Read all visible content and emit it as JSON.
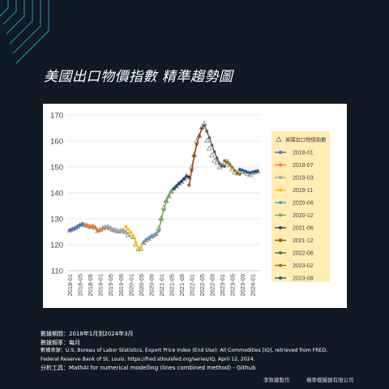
{
  "header": {
    "title": "美國出口物價指數 精準趨勢圖"
  },
  "chart_data": {
    "type": "line",
    "title": "",
    "xlabel": "",
    "ylabel": "",
    "ylim": [
      110,
      170
    ],
    "yticks": [
      110,
      120,
      130,
      140,
      150,
      160,
      170
    ],
    "xticks": [
      "2018-01",
      "2018-05",
      "2018-09",
      "2019-01",
      "2019-05",
      "2019-09",
      "2020-01",
      "2020-05",
      "2020-09",
      "2021-01",
      "2021-05",
      "2021-09",
      "2022-01",
      "2022-05",
      "2022-09",
      "2023-01",
      "2023-05",
      "2023-09",
      "2024-01"
    ],
    "grid": true,
    "legend_position": "right",
    "observed": {
      "name": "美國出口物價指數",
      "color": "#777777",
      "marker": "open-triangle",
      "x": [
        "2018-01",
        "2018-02",
        "2018-03",
        "2018-04",
        "2018-05",
        "2018-06",
        "2018-07",
        "2018-08",
        "2018-09",
        "2018-10",
        "2018-11",
        "2018-12",
        "2019-01",
        "2019-02",
        "2019-03",
        "2019-04",
        "2019-05",
        "2019-06",
        "2019-07",
        "2019-08",
        "2019-09",
        "2019-10",
        "2019-11",
        "2019-12",
        "2020-01",
        "2020-02",
        "2020-03",
        "2020-04",
        "2020-05",
        "2020-06",
        "2020-07",
        "2020-08",
        "2020-09",
        "2020-10",
        "2020-11",
        "2020-12",
        "2021-01",
        "2021-02",
        "2021-03",
        "2021-04",
        "2021-05",
        "2021-06",
        "2021-07",
        "2021-08",
        "2021-09",
        "2021-10",
        "2021-11",
        "2021-12",
        "2022-01",
        "2022-02",
        "2022-03",
        "2022-04",
        "2022-05",
        "2022-06",
        "2022-07",
        "2022-08",
        "2022-09",
        "2022-10",
        "2022-11",
        "2022-12",
        "2023-01",
        "2023-02",
        "2023-03",
        "2023-04",
        "2023-05",
        "2023-06",
        "2023-07",
        "2023-08",
        "2023-09",
        "2023-10",
        "2023-11",
        "2023-12",
        "2024-01",
        "2024-02",
        "2024-03"
      ],
      "y": [
        125.6,
        126.0,
        126.4,
        127.0,
        127.6,
        128.0,
        127.6,
        127.4,
        127.0,
        127.2,
        126.6,
        125.4,
        125.8,
        126.4,
        126.8,
        126.9,
        126.4,
        125.8,
        125.6,
        125.2,
        125.4,
        125.5,
        125.0,
        123.8,
        124.0,
        123.0,
        120.2,
        118.4,
        118.6,
        120.8,
        121.8,
        122.4,
        123.2,
        123.6,
        124.2,
        126.4,
        130.2,
        134.4,
        137.0,
        138.8,
        140.6,
        141.8,
        142.6,
        143.6,
        144.4,
        145.4,
        146.6,
        146.0,
        150.0,
        154.8,
        160.0,
        162.0,
        165.4,
        166.8,
        160.2,
        157.2,
        154.6,
        152.6,
        151.8,
        150.0,
        150.6,
        151.6,
        152.2,
        150.8,
        149.2,
        148.0,
        147.6,
        148.8,
        148.4,
        148.0,
        147.4,
        147.0,
        147.8,
        148.2,
        148.4
      ]
    },
    "series": [
      {
        "name": "2018-01",
        "color": "#4472c4",
        "x": [
          "2018-01",
          "2018-02",
          "2018-03",
          "2018-04",
          "2018-05",
          "2018-06",
          "2018-07"
        ],
        "y": [
          125.6,
          126.0,
          126.4,
          127.0,
          127.6,
          128.0,
          127.6
        ]
      },
      {
        "name": "2018-07",
        "color": "#ed7d31",
        "x": [
          "2018-07",
          "2018-08",
          "2018-09",
          "2018-10",
          "2018-11",
          "2018-12",
          "2019-01",
          "2019-02",
          "2019-03"
        ],
        "y": [
          127.6,
          127.4,
          127.0,
          127.2,
          126.6,
          125.4,
          125.8,
          126.4,
          126.8
        ]
      },
      {
        "name": "2019-03",
        "color": "#a5a5a5",
        "x": [
          "2019-03",
          "2019-04",
          "2019-05",
          "2019-06",
          "2019-07",
          "2019-08",
          "2019-09",
          "2019-10",
          "2019-11"
        ],
        "y": [
          126.8,
          126.9,
          126.4,
          125.8,
          125.6,
          125.2,
          125.4,
          125.5,
          125.0
        ]
      },
      {
        "name": "2019-11",
        "color": "#ffc000",
        "x": [
          "2019-11",
          "2019-12",
          "2020-01",
          "2020-02",
          "2020-03",
          "2020-04",
          "2020-05",
          "2020-06"
        ],
        "y": [
          127.0,
          126.0,
          124.8,
          123.2,
          121.0,
          118.8,
          119.0,
          120.6
        ]
      },
      {
        "name": "2020-06",
        "color": "#5b9bd5",
        "x": [
          "2020-06",
          "2020-07",
          "2020-08",
          "2020-09",
          "2020-10",
          "2020-11",
          "2020-12"
        ],
        "y": [
          120.8,
          121.8,
          122.4,
          123.2,
          123.6,
          124.2,
          125.2
        ]
      },
      {
        "name": "2020-12",
        "color": "#70ad47",
        "x": [
          "2020-12",
          "2021-01",
          "2021-02",
          "2021-03",
          "2021-04",
          "2021-05",
          "2021-06"
        ],
        "y": [
          125.2,
          129.6,
          133.4,
          136.6,
          138.8,
          140.4,
          141.6
        ]
      },
      {
        "name": "2021-06",
        "color": "#264478",
        "x": [
          "2021-06",
          "2021-07",
          "2021-08",
          "2021-09",
          "2021-10",
          "2021-11",
          "2021-12"
        ],
        "y": [
          141.6,
          142.6,
          143.6,
          144.4,
          145.4,
          146.4,
          146.0
        ]
      },
      {
        "name": "2021-12",
        "color": "#9e480e",
        "x": [
          "2021-12",
          "2022-01",
          "2022-02",
          "2022-03",
          "2022-04",
          "2022-05",
          "2022-06"
        ],
        "y": [
          143.0,
          148.6,
          154.2,
          158.8,
          162.0,
          164.8,
          166.0
        ]
      },
      {
        "name": "2022-06",
        "color": "#636363",
        "x": [
          "2022-06",
          "2022-07",
          "2022-08",
          "2022-09",
          "2022-10",
          "2022-11",
          "2022-12",
          "2023-01",
          "2023-02"
        ],
        "y": [
          166.0,
          163.8,
          161.2,
          158.4,
          155.8,
          153.4,
          151.4,
          150.4,
          150.2
        ]
      },
      {
        "name": "2023-02",
        "color": "#997300",
        "x": [
          "2023-02",
          "2023-03",
          "2023-04",
          "2023-05",
          "2023-06",
          "2023-07",
          "2023-08"
        ],
        "y": [
          152.4,
          151.8,
          151.0,
          149.8,
          148.6,
          147.6,
          147.2
        ]
      },
      {
        "name": "2023-08",
        "color": "#255e91",
        "x": [
          "2023-08",
          "2023-09",
          "2023-10",
          "2023-11",
          "2023-12",
          "2024-01",
          "2024-02",
          "2024-03"
        ],
        "y": [
          149.0,
          148.8,
          148.4,
          148.0,
          147.8,
          148.0,
          148.2,
          148.4
        ]
      }
    ]
  },
  "notes": {
    "period": "數據期間：2018年1月到2024年3月",
    "frequency": "數據頻率：每月",
    "source_line1": "數據來源：U.S. Bureau of Labor Statistics, Export Price Index (End Use): All Commodities [IQ], retrieved from FRED,",
    "source_line2": "Federal Reserve Bank of St. Louis; https://fred.stlouisfed.org/series/IQ, April 12, 2024.",
    "tool": "分析工具：MathAI  for numerical modelling (lines combined method) - Github"
  },
  "footer": {
    "author": "李致葳製作",
    "company": "機率模擬器有限公司"
  },
  "colors": {
    "background": "#0f1a24",
    "accent_lines": "#1fb5c9",
    "legend_background": "#ffedb3"
  }
}
